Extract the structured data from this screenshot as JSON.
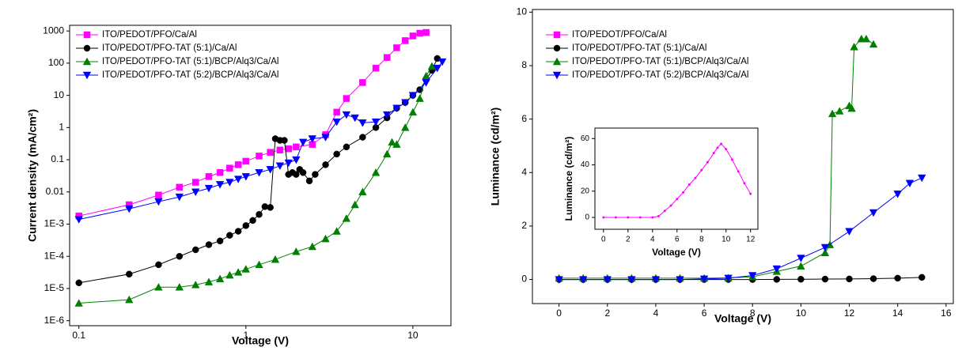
{
  "chart_data": [
    {
      "type": "line",
      "xlabel": "Voltage (V)",
      "ylabel": "Current density (mA/cm²)",
      "xscale": "log",
      "yscale": "log",
      "xlim": [
        0.088,
        16.9
      ],
      "ylim": [
        7e-07,
        1500
      ],
      "xticks": [
        0.1,
        1,
        10
      ],
      "yticks": [
        {
          "value": 1e-06,
          "label": "1E-6"
        },
        {
          "value": 1e-05,
          "label": "1E-5"
        },
        {
          "value": 0.0001,
          "label": "1E-4"
        },
        {
          "value": 0.001,
          "label": "1E-3"
        },
        0.01,
        0.1,
        1,
        10,
        100,
        1000
      ],
      "legend": "upper left",
      "series": [
        {
          "name": "ITO/PEDOT/PFO/Ca/Al",
          "color": "#ff00ff",
          "marker": "square",
          "x": [
            0.1,
            0.2,
            0.3,
            0.4,
            0.5,
            0.6,
            0.7,
            0.8,
            0.9,
            1,
            1.2,
            1.4,
            1.6,
            1.8,
            2,
            2.5,
            3,
            3.5,
            4,
            5,
            6,
            7,
            8,
            9,
            10,
            11,
            12
          ],
          "values": [
            0.0018,
            0.004,
            0.008,
            0.014,
            0.02,
            0.03,
            0.04,
            0.055,
            0.07,
            0.09,
            0.13,
            0.17,
            0.2,
            0.22,
            0.25,
            0.3,
            0.6,
            3,
            8,
            25,
            70,
            150,
            300,
            500,
            700,
            850,
            900
          ]
        },
        {
          "name": "ITO/PEDOT/PFO-TAT (5:1)/Ca/Al",
          "color": "#000000",
          "marker": "circle",
          "x": [
            0.1,
            0.2,
            0.3,
            0.4,
            0.5,
            0.6,
            0.7,
            0.8,
            0.9,
            1,
            1.1,
            1.2,
            1.3,
            1.4,
            1.5,
            1.6,
            1.7,
            1.8,
            1.9,
            2,
            2.1,
            2.2,
            2.4,
            2.6,
            3,
            3.5,
            4,
            5,
            6,
            7,
            8,
            9,
            10,
            11,
            12,
            13,
            14
          ],
          "values": [
            1.5e-05,
            2.8e-05,
            5.5e-05,
            0.0001,
            0.00016,
            0.00023,
            0.0003,
            0.00045,
            0.0006,
            0.0009,
            0.0013,
            0.002,
            0.0035,
            0.0033,
            0.45,
            0.4,
            0.4,
            0.035,
            0.04,
            0.035,
            0.05,
            0.04,
            0.022,
            0.035,
            0.07,
            0.15,
            0.25,
            0.5,
            1,
            2,
            4,
            6,
            10,
            15,
            30,
            60,
            140
          ]
        },
        {
          "name": "ITO/PEDOT/PFO-TAT (5:1)/BCP/Alq3/Ca/Al",
          "color": "#008000",
          "marker": "triangle-up",
          "x": [
            0.1,
            0.2,
            0.3,
            0.4,
            0.5,
            0.6,
            0.7,
            0.8,
            0.9,
            1,
            1.2,
            1.5,
            2,
            2.5,
            3,
            3.5,
            4,
            4.5,
            5,
            6,
            7,
            7.5,
            8,
            9,
            10,
            11,
            12,
            13
          ],
          "values": [
            3.5e-06,
            4.5e-06,
            1.1e-05,
            1.1e-05,
            1.3e-05,
            1.6e-05,
            2e-05,
            2.6e-05,
            3.2e-05,
            4e-05,
            5.5e-05,
            8e-05,
            0.00014,
            0.0002,
            0.00035,
            0.0006,
            0.0015,
            0.004,
            0.01,
            0.04,
            0.15,
            0.35,
            0.3,
            1,
            3,
            8,
            40,
            80
          ]
        },
        {
          "name": "ITO/PEDOT/PFO-TAT (5:2)/BCP/Alq3/Ca/Al",
          "color": "#0000ff",
          "marker": "triangle-down",
          "x": [
            0.1,
            0.2,
            0.3,
            0.4,
            0.5,
            0.6,
            0.7,
            0.8,
            0.9,
            1,
            1.2,
            1.4,
            1.6,
            1.8,
            2,
            2.2,
            2.5,
            3,
            3.5,
            4,
            4.5,
            5,
            6,
            7,
            8,
            9,
            10,
            12,
            14,
            15
          ],
          "values": [
            0.0014,
            0.003,
            0.005,
            0.007,
            0.01,
            0.013,
            0.017,
            0.02,
            0.025,
            0.03,
            0.04,
            0.05,
            0.065,
            0.08,
            0.1,
            0.35,
            0.45,
            0.5,
            1.5,
            2.5,
            2,
            1.4,
            1.5,
            2.5,
            4,
            6,
            10,
            25,
            70,
            110
          ]
        }
      ]
    },
    {
      "type": "line",
      "xlabel": "Voltage (V)",
      "ylabel": "Luminance (cd/m²)",
      "xscale": "linear",
      "yscale": "linear",
      "xlim": [
        -1.1,
        16.3
      ],
      "ylim": [
        -0.9,
        10.1
      ],
      "xticks": [
        0,
        2,
        4,
        6,
        8,
        10,
        12,
        14,
        16
      ],
      "yticks": [
        0,
        2,
        4,
        6,
        8,
        10
      ],
      "legend": "upper left",
      "series": [
        {
          "name": "ITO/PEDOT/PFO/Ca/Al",
          "color": "#ff00ff",
          "marker": "square"
        },
        {
          "name": "ITO/PEDOT/PFO-TAT (5:1)/Ca/Al",
          "color": "#000000",
          "marker": "circle",
          "x": [
            0,
            1,
            2,
            3,
            4,
            5,
            6,
            7,
            8,
            9,
            10,
            11,
            12,
            13,
            14,
            15
          ],
          "values": [
            0,
            0,
            0,
            0,
            0,
            0,
            0,
            0,
            0,
            0.005,
            0.01,
            0.015,
            0.02,
            0.03,
            0.05,
            0.08
          ]
        },
        {
          "name": "ITO/PEDOT/PFO-TAT (5:1)/BCP/Alq3/Ca/Al",
          "color": "#008000",
          "marker": "triangle-up",
          "x": [
            0,
            1,
            2,
            3,
            4,
            5,
            6,
            7,
            8,
            9,
            10,
            11,
            11.2,
            11.3,
            11.6,
            12,
            12.1,
            12.2,
            12.5,
            12.7,
            13
          ],
          "values": [
            0.05,
            0.05,
            0.05,
            0.05,
            0.05,
            0.05,
            0.05,
            0.06,
            0.1,
            0.3,
            0.5,
            1,
            1.3,
            6.2,
            6.3,
            6.5,
            6.4,
            8.7,
            9,
            9,
            8.8
          ]
        },
        {
          "name": "ITO/PEDOT/PFO-TAT (5:2)/BCP/Alq3/Ca/Al",
          "color": "#0000ff",
          "marker": "triangle-down",
          "x": [
            0,
            1,
            2,
            3,
            4,
            5,
            6,
            7,
            8,
            9,
            10,
            11,
            12,
            13,
            14,
            14.5,
            15
          ],
          "values": [
            0,
            0,
            0,
            0,
            0,
            0,
            0.02,
            0.05,
            0.15,
            0.4,
            0.8,
            1.2,
            1.8,
            2.5,
            3.2,
            3.6,
            3.8
          ]
        }
      ]
    },
    {
      "type": "line",
      "xlabel": "Voltage (V)",
      "ylabel": "Luminance (cd/m²)",
      "xscale": "linear",
      "yscale": "linear",
      "xlim": [
        -0.7,
        12.6
      ],
      "ylim": [
        -9,
        68
      ],
      "xticks": [
        0,
        2,
        4,
        6,
        8,
        10,
        12
      ],
      "yticks": [
        0,
        20,
        40,
        60
      ],
      "series": [
        {
          "color": "#ff00ff",
          "marker": "dot",
          "x": [
            0,
            1,
            2,
            3,
            4,
            4.5,
            5,
            5.5,
            6,
            6.5,
            7,
            7.5,
            8,
            8.5,
            9,
            9.3,
            9.6,
            10,
            10.5,
            11,
            11.5,
            12
          ],
          "values": [
            0,
            0,
            0,
            0,
            0,
            1,
            5,
            9,
            14,
            19,
            25,
            30,
            36,
            42,
            49,
            53,
            56,
            52,
            44,
            35,
            26,
            18
          ]
        }
      ]
    }
  ]
}
